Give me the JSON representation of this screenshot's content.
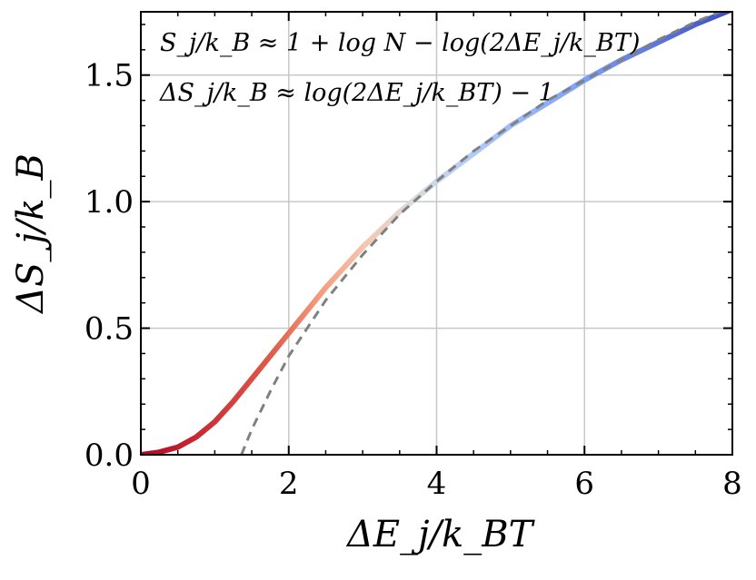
{
  "chart_data": {
    "type": "line",
    "xlabel": "ΔE_j/k_BT",
    "ylabel": "ΔS_j/k_B",
    "xlim": [
      0,
      8
    ],
    "ylim": [
      0,
      1.75
    ],
    "x_ticks": [
      "0",
      "2",
      "4",
      "6",
      "8"
    ],
    "y_ticks": [
      "0.0",
      "0.5",
      "1.0",
      "1.5"
    ],
    "grid": true,
    "annotations": [
      "S_j/k_B ≈ 1 + log N − log(2ΔE_j/k_BT)",
      "ΔS_j/k_B ≈ log(2ΔE_j/k_BT) − 1"
    ],
    "series": [
      {
        "style": "solid, color gradient red → white → blue",
        "x": [
          0,
          0.25,
          0.5,
          0.75,
          1.0,
          1.25,
          1.5,
          1.75,
          2.0,
          2.25,
          2.5,
          2.75,
          3.0,
          3.25,
          3.5,
          3.75,
          4.0,
          4.5,
          5.0,
          5.5,
          6.0,
          6.5,
          7.0,
          7.5,
          8.0
        ],
        "y": [
          0.0,
          0.01,
          0.03,
          0.07,
          0.13,
          0.21,
          0.3,
          0.39,
          0.48,
          0.57,
          0.66,
          0.74,
          0.82,
          0.89,
          0.96,
          1.02,
          1.08,
          1.19,
          1.3,
          1.39,
          1.48,
          1.56,
          1.63,
          1.7,
          1.76
        ]
      },
      {
        "style": "dashed, gray",
        "x": [
          1.36,
          1.5,
          1.75,
          2.0,
          2.5,
          3.0,
          3.5,
          4.0,
          4.5,
          5.0,
          5.5,
          6.0,
          6.5,
          7.0,
          7.5,
          8.0
        ],
        "y": [
          0.0,
          0.1,
          0.25,
          0.39,
          0.61,
          0.79,
          0.95,
          1.08,
          1.2,
          1.3,
          1.4,
          1.48,
          1.56,
          1.64,
          1.71,
          1.77
        ]
      }
    ]
  }
}
